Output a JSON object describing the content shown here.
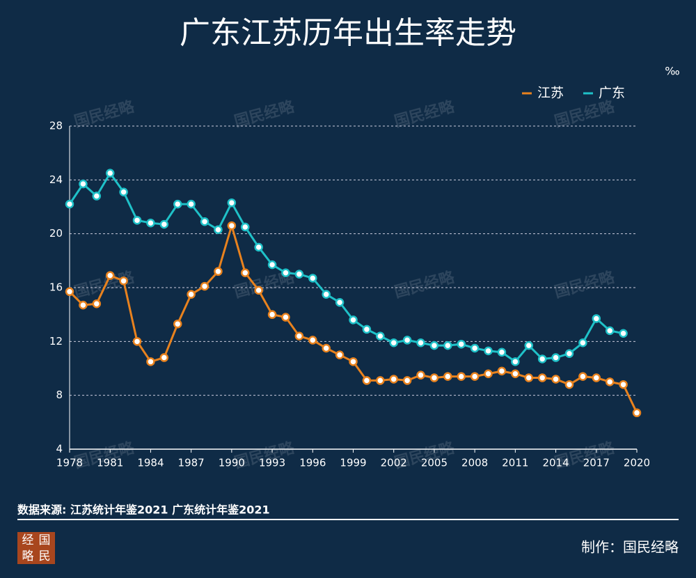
{
  "chart_data": {
    "type": "line",
    "title": "广东江苏历年出生率走势",
    "unit": "‰",
    "x": [
      1978,
      1979,
      1980,
      1981,
      1982,
      1983,
      1984,
      1985,
      1986,
      1987,
      1988,
      1989,
      1990,
      1991,
      1992,
      1993,
      1994,
      1995,
      1996,
      1997,
      1998,
      1999,
      2000,
      2001,
      2002,
      2003,
      2004,
      2005,
      2006,
      2007,
      2008,
      2009,
      2010,
      2011,
      2012,
      2013,
      2014,
      2015,
      2016,
      2017,
      2018,
      2019,
      2020
    ],
    "series": [
      {
        "name": "江苏",
        "color": "#e8821e",
        "values": [
          15.7,
          14.7,
          14.8,
          16.9,
          16.5,
          12.0,
          10.5,
          10.8,
          13.3,
          15.5,
          16.1,
          17.2,
          20.6,
          17.1,
          15.8,
          14.0,
          13.8,
          12.4,
          12.1,
          11.5,
          11.0,
          10.5,
          9.1,
          9.1,
          9.2,
          9.1,
          9.5,
          9.3,
          9.4,
          9.4,
          9.4,
          9.6,
          9.8,
          9.6,
          9.3,
          9.3,
          9.2,
          8.8,
          9.4,
          9.3,
          9.0,
          8.8,
          6.7
        ]
      },
      {
        "name": "广东",
        "color": "#1fc1c8",
        "values": [
          22.2,
          23.7,
          22.8,
          24.5,
          23.1,
          21.0,
          20.8,
          20.7,
          22.2,
          22.2,
          20.9,
          20.3,
          22.3,
          20.5,
          19.0,
          17.7,
          17.1,
          17.0,
          16.7,
          15.5,
          14.9,
          13.6,
          12.9,
          12.4,
          11.9,
          12.1,
          11.9,
          11.7,
          11.7,
          11.8,
          11.5,
          11.3,
          11.2,
          10.5,
          11.7,
          10.7,
          10.8,
          11.1,
          11.9,
          13.7,
          12.8,
          12.6,
          null
        ]
      }
    ],
    "xlim": [
      1978,
      2020
    ],
    "xticks": [
      1978,
      1981,
      1984,
      1987,
      1990,
      1993,
      1996,
      1999,
      2002,
      2005,
      2008,
      2011,
      2014,
      2017,
      2020
    ],
    "ylim": [
      4,
      28
    ],
    "yticks": [
      4,
      8,
      12,
      16,
      20,
      24,
      28
    ],
    "grid": true,
    "legend": "top-right",
    "watermark": "国民经略",
    "source": "数据来源: 江苏统计年鉴2021 广东统计年鉴2021",
    "credit": "制作：国民经略",
    "logo": [
      "经",
      "国",
      "略",
      "民"
    ]
  }
}
